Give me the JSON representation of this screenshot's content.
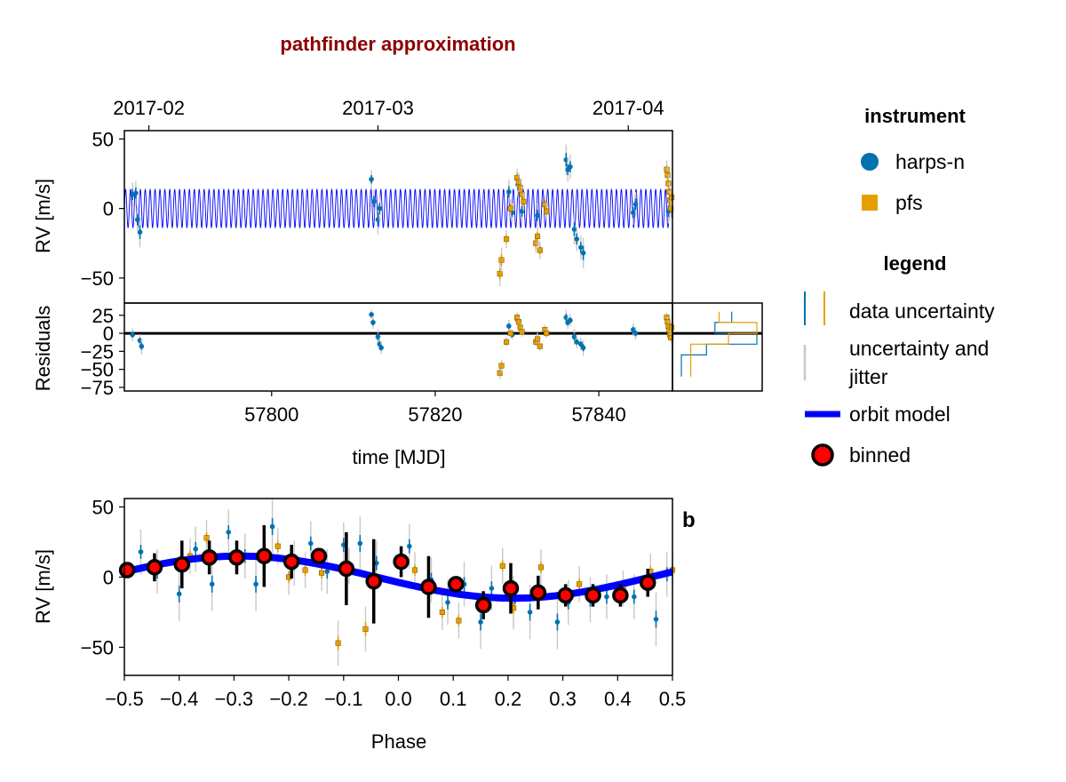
{
  "title": "pathfinder approximation",
  "colors": {
    "harps": "#0072b2",
    "pfs": "#e69f00",
    "model": "#0000ff",
    "binned": "#ff0000",
    "title": "#8b0000",
    "jitter": "#c8c8c8"
  },
  "legend": {
    "instrument_title": "instrument",
    "instruments": [
      "harps-n",
      "pfs"
    ],
    "legend_title": "legend",
    "items": [
      "data uncertainty",
      "uncertainty and",
      "jitter",
      "orbit model",
      "binned"
    ]
  },
  "chart_data": [
    {
      "id": "rv_time",
      "type": "scatter",
      "ylabel": "RV [m/s]",
      "xlim": [
        57782,
        57849
      ],
      "ylim": [
        -68,
        56
      ],
      "yticks": [
        50,
        0,
        -50
      ],
      "ytick_labels": [
        "50",
        "0",
        "−50"
      ],
      "top_ticks": [
        57785,
        57813,
        57843.6
      ],
      "top_tick_labels": [
        "2017-02",
        "2017-03",
        "2017-04"
      ],
      "model_amplitude": 14,
      "model_period": 0.6,
      "series": [
        {
          "name": "harps-n",
          "points": [
            [
              57783.0,
              10,
              4
            ],
            [
              57783.4,
              11,
              4
            ],
            [
              57783.9,
              -17,
              5
            ],
            [
              57783.6,
              -8,
              4
            ],
            [
              57812.2,
              21,
              3
            ],
            [
              57812.5,
              5,
              4
            ],
            [
              57813.0,
              -8,
              5
            ],
            [
              57813.2,
              0,
              4
            ],
            [
              57829.0,
              12,
              4
            ],
            [
              57829.4,
              -3,
              3
            ],
            [
              57830.1,
              17,
              4
            ],
            [
              57830.6,
              -2,
              4
            ],
            [
              57832.5,
              -5,
              4
            ],
            [
              57836.0,
              35,
              5
            ],
            [
              57836.2,
              28,
              4
            ],
            [
              57836.5,
              30,
              4
            ],
            [
              57837.0,
              -15,
              5
            ],
            [
              57837.3,
              -22,
              4
            ],
            [
              57837.8,
              -28,
              4
            ],
            [
              57838.1,
              -32,
              5
            ],
            [
              57844.2,
              -3,
              4
            ],
            [
              57844.5,
              3,
              4
            ],
            [
              57848.5,
              -2,
              4
            ]
          ]
        },
        {
          "name": "pfs",
          "points": [
            [
              57827.9,
              -47,
              4
            ],
            [
              57828.1,
              -37,
              4
            ],
            [
              57828.7,
              -22,
              3
            ],
            [
              57829.2,
              0,
              3
            ],
            [
              57830.0,
              22,
              3
            ],
            [
              57830.2,
              19,
              3
            ],
            [
              57830.4,
              15,
              3
            ],
            [
              57830.6,
              10,
              3
            ],
            [
              57830.8,
              5,
              3
            ],
            [
              57832.3,
              -25,
              3
            ],
            [
              57832.5,
              -20,
              3
            ],
            [
              57832.8,
              -30,
              3
            ],
            [
              57833.4,
              3,
              3
            ],
            [
              57833.6,
              -2,
              3
            ],
            [
              57848.3,
              28,
              3
            ],
            [
              57848.4,
              24,
              3
            ],
            [
              57848.5,
              18,
              3
            ],
            [
              57848.6,
              12,
              3
            ],
            [
              57848.7,
              6,
              3
            ],
            [
              57848.8,
              0,
              3
            ],
            [
              57848.9,
              8,
              3
            ]
          ]
        }
      ]
    },
    {
      "id": "residuals",
      "type": "scatter",
      "ylabel": "Residuals",
      "xlabel": "time [MJD]",
      "xlim": [
        57782,
        57849
      ],
      "ylim": [
        -80,
        42
      ],
      "yticks": [
        25,
        0,
        -25,
        -50,
        -75
      ],
      "ytick_labels": [
        "25",
        "0",
        "−25",
        "−50",
        "−75"
      ],
      "xticks": [
        57800,
        57820,
        57840
      ],
      "xtick_labels": [
        "57800",
        "57820",
        "57840"
      ],
      "series": [
        {
          "name": "harps-n",
          "points": [
            [
              57783.0,
              -2,
              4
            ],
            [
              57783.9,
              -10,
              4
            ],
            [
              57784.1,
              -18,
              5
            ],
            [
              57812.2,
              26,
              3
            ],
            [
              57812.4,
              15,
              4
            ],
            [
              57813.0,
              -5,
              5
            ],
            [
              57813.2,
              -15,
              4
            ],
            [
              57813.4,
              -20,
              4
            ],
            [
              57829.0,
              10,
              4
            ],
            [
              57829.4,
              -2,
              3
            ],
            [
              57830.1,
              18,
              4
            ],
            [
              57832.5,
              -8,
              4
            ],
            [
              57836.0,
              22,
              5
            ],
            [
              57836.2,
              15,
              4
            ],
            [
              57836.5,
              18,
              4
            ],
            [
              57837.0,
              -5,
              5
            ],
            [
              57837.3,
              -12,
              4
            ],
            [
              57837.8,
              -15,
              4
            ],
            [
              57838.1,
              -20,
              5
            ],
            [
              57844.2,
              5,
              4
            ],
            [
              57844.5,
              0,
              4
            ],
            [
              57848.5,
              10,
              4
            ]
          ]
        },
        {
          "name": "pfs",
          "points": [
            [
              57827.9,
              -55,
              4
            ],
            [
              57828.1,
              -45,
              4
            ],
            [
              57828.7,
              -12,
              3
            ],
            [
              57829.2,
              0,
              3
            ],
            [
              57830.0,
              22,
              3
            ],
            [
              57830.2,
              16,
              3
            ],
            [
              57830.4,
              8,
              3
            ],
            [
              57830.6,
              2,
              3
            ],
            [
              57832.3,
              -12,
              3
            ],
            [
              57832.5,
              -8,
              3
            ],
            [
              57832.8,
              -18,
              3
            ],
            [
              57833.4,
              5,
              3
            ],
            [
              57833.6,
              0,
              3
            ],
            [
              57848.3,
              22,
              3
            ],
            [
              57848.4,
              16,
              3
            ],
            [
              57848.5,
              10,
              3
            ],
            [
              57848.6,
              4,
              3
            ],
            [
              57848.7,
              -2,
              3
            ],
            [
              57848.8,
              -6,
              3
            ],
            [
              57848.9,
              8,
              3
            ]
          ]
        }
      ]
    },
    {
      "id": "phase",
      "type": "scatter",
      "panel_label": "b",
      "xlabel": "Phase",
      "ylabel": "RV [m/s]",
      "xlim": [
        -0.5,
        0.5
      ],
      "ylim": [
        -70,
        56
      ],
      "yticks": [
        50,
        0,
        -50
      ],
      "ytick_labels": [
        "50",
        "0",
        "−50"
      ],
      "xticks": [
        -0.5,
        -0.4,
        -0.3,
        -0.2,
        -0.1,
        0.0,
        0.1,
        0.2,
        0.3,
        0.4,
        0.5
      ],
      "xtick_labels": [
        "−0.5",
        "−0.4",
        "−0.3",
        "−0.2",
        "−0.1",
        "0.0",
        "0.1",
        "0.2",
        "0.3",
        "0.4",
        "0.5"
      ],
      "model_amplitude": 15,
      "binned": [
        [
          -0.495,
          5,
          5
        ],
        [
          -0.445,
          7,
          10
        ],
        [
          -0.395,
          9,
          17
        ],
        [
          -0.345,
          14,
          12
        ],
        [
          -0.295,
          14,
          12
        ],
        [
          -0.245,
          15,
          22
        ],
        [
          -0.195,
          11,
          12
        ],
        [
          -0.145,
          15,
          5
        ],
        [
          -0.095,
          6,
          26
        ],
        [
          -0.045,
          -3,
          30
        ],
        [
          0.005,
          11,
          11
        ],
        [
          0.055,
          -7,
          22
        ],
        [
          0.105,
          -5,
          3
        ],
        [
          0.155,
          -20,
          10
        ],
        [
          0.205,
          -8,
          18
        ],
        [
          0.255,
          -11,
          12
        ],
        [
          0.305,
          -13,
          8
        ],
        [
          0.355,
          -13,
          8
        ],
        [
          0.405,
          -13,
          8
        ],
        [
          0.455,
          -4,
          10
        ]
      ],
      "series": [
        {
          "name": "harps-n",
          "points": [
            [
              -0.47,
              18,
              5
            ],
            [
              -0.44,
              4,
              5
            ],
            [
              -0.4,
              -12,
              6
            ],
            [
              -0.37,
              20,
              5
            ],
            [
              -0.34,
              -5,
              6
            ],
            [
              -0.31,
              32,
              5
            ],
            [
              -0.28,
              15,
              5
            ],
            [
              -0.26,
              -5,
              6
            ],
            [
              -0.23,
              36,
              6
            ],
            [
              -0.19,
              10,
              5
            ],
            [
              -0.16,
              24,
              5
            ],
            [
              -0.13,
              4,
              5
            ],
            [
              -0.1,
              23,
              5
            ],
            [
              -0.07,
              24,
              6
            ],
            [
              -0.04,
              10,
              5
            ],
            [
              0.02,
              22,
              5
            ],
            [
              0.06,
              -2,
              5
            ],
            [
              0.09,
              -18,
              5
            ],
            [
              0.12,
              -5,
              5
            ],
            [
              0.15,
              -32,
              6
            ],
            [
              0.17,
              -8,
              5
            ],
            [
              0.21,
              -18,
              6
            ],
            [
              0.24,
              -25,
              6
            ],
            [
              0.29,
              -32,
              6
            ],
            [
              0.31,
              -18,
              5
            ],
            [
              0.35,
              -16,
              5
            ],
            [
              0.38,
              -14,
              5
            ],
            [
              0.43,
              -14,
              5
            ],
            [
              0.47,
              -30,
              6
            ],
            [
              0.49,
              2,
              5
            ]
          ]
        },
        {
          "name": "pfs",
          "points": [
            [
              -0.38,
              15,
              4
            ],
            [
              -0.35,
              28,
              4
            ],
            [
              -0.22,
              22,
              4
            ],
            [
              -0.2,
              0,
              4
            ],
            [
              -0.17,
              5,
              4
            ],
            [
              -0.14,
              3,
              4
            ],
            [
              -0.09,
              8,
              4
            ],
            [
              -0.11,
              -47,
              5
            ],
            [
              -0.06,
              -37,
              5
            ],
            [
              0.03,
              5,
              4
            ],
            [
              0.08,
              -25,
              4
            ],
            [
              0.11,
              -31,
              4
            ],
            [
              0.19,
              8,
              4
            ],
            [
              0.21,
              -22,
              4
            ],
            [
              0.26,
              7,
              4
            ],
            [
              0.33,
              -5,
              4
            ],
            [
              0.41,
              -8,
              4
            ],
            [
              0.46,
              4,
              4
            ],
            [
              0.5,
              5,
              4
            ]
          ]
        }
      ]
    }
  ]
}
